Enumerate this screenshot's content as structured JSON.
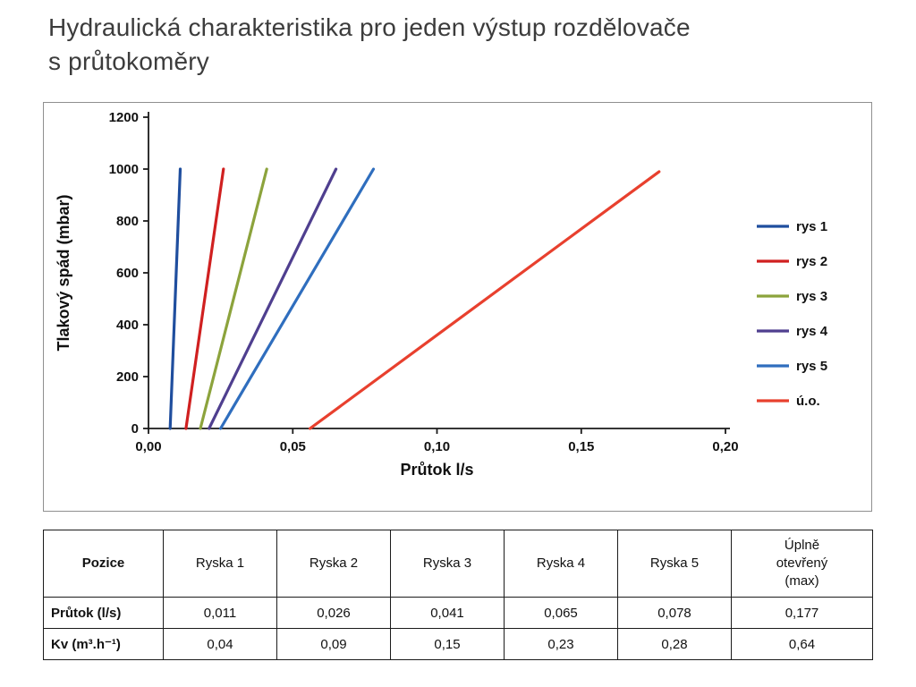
{
  "title": {
    "line1": "Hydraulická charakteristika pro jeden výstup rozdělovače",
    "line2": "s průtokoměry"
  },
  "chart_data": {
    "type": "line",
    "title": "",
    "xlabel": "Průtok l/s",
    "ylabel": "Tlakový spád (mbar)",
    "xlim": [
      0,
      0.2
    ],
    "ylim": [
      0,
      1200
    ],
    "x_ticks": [
      "0,00",
      "0,05",
      "0,10",
      "0,15",
      "0,20"
    ],
    "x_tick_values": [
      0,
      0.05,
      0.1,
      0.15,
      0.2
    ],
    "y_ticks": [
      0,
      200,
      400,
      600,
      800,
      1000,
      1200
    ],
    "grid": false,
    "legend_position": "right",
    "series": [
      {
        "name": "rys 1",
        "color": "#1f4e9e",
        "points": [
          [
            0.0075,
            0
          ],
          [
            0.011,
            1000
          ]
        ]
      },
      {
        "name": "rys 2",
        "color": "#d02020",
        "points": [
          [
            0.013,
            0
          ],
          [
            0.026,
            1000
          ]
        ]
      },
      {
        "name": "rys 3",
        "color": "#8ca33c",
        "points": [
          [
            0.018,
            0
          ],
          [
            0.041,
            1000
          ]
        ]
      },
      {
        "name": "rys 4",
        "color": "#4f3f8f",
        "points": [
          [
            0.021,
            0
          ],
          [
            0.065,
            1000
          ]
        ]
      },
      {
        "name": "rys 5",
        "color": "#2f6ebe",
        "points": [
          [
            0.025,
            0
          ],
          [
            0.078,
            1000
          ]
        ]
      },
      {
        "name": "ú.o.",
        "color": "#e8402e",
        "points": [
          [
            0.056,
            0
          ],
          [
            0.177,
            990
          ]
        ]
      }
    ]
  },
  "table": {
    "headers": [
      "Pozice",
      "Ryska 1",
      "Ryska 2",
      "Ryska 3",
      "Ryska 4",
      "Ryska 5",
      "Úplně\notevřený\n(max)"
    ],
    "rows": [
      {
        "label": "Průtok (l/s)",
        "values": [
          "0,011",
          "0,026",
          "0,041",
          "0,065",
          "0,078",
          "0,177"
        ]
      },
      {
        "label": "Kv (m³.h⁻¹)",
        "values": [
          "0,04",
          "0,09",
          "0,15",
          "0,23",
          "0,28",
          "0,64"
        ]
      }
    ]
  }
}
